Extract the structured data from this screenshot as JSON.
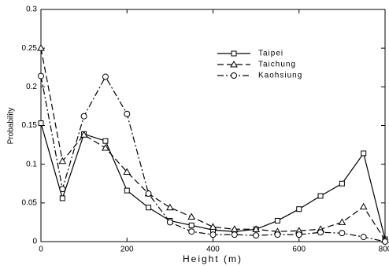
{
  "chart_data": {
    "type": "line",
    "xlabel": "Height (m)",
    "ylabel": "Probability",
    "x": [
      0,
      50,
      100,
      150,
      200,
      250,
      300,
      350,
      400,
      450,
      500,
      550,
      600,
      650,
      700,
      750,
      800
    ],
    "series": [
      {
        "name": "Taipei",
        "color": "#000000",
        "dash": "solid",
        "marker": "square",
        "values": [
          0.153,
          0.056,
          0.139,
          0.13,
          0.066,
          0.044,
          0.027,
          0.021,
          0.015,
          0.013,
          0.016,
          0.027,
          0.042,
          0.059,
          0.075,
          0.114,
          0.003
        ]
      },
      {
        "name": "Taichung",
        "color": "#000000",
        "dash": "dashed",
        "marker": "triangle",
        "values": [
          0.25,
          0.104,
          0.138,
          0.121,
          0.09,
          0.062,
          0.044,
          0.032,
          0.019,
          0.016,
          0.016,
          0.013,
          0.014,
          0.016,
          0.025,
          0.045,
          0.002
        ]
      },
      {
        "name": "Kaohsiung",
        "color": "#000000",
        "dash": "dashdot",
        "marker": "circle",
        "values": [
          0.214,
          0.068,
          0.162,
          0.213,
          0.165,
          0.062,
          0.025,
          0.013,
          0.009,
          0.009,
          0.008,
          0.009,
          0.009,
          0.012,
          0.011,
          0.006,
          0
        ]
      }
    ],
    "xlim": [
      0,
      800
    ],
    "xticks": [
      0,
      200,
      400,
      600,
      800
    ],
    "ylim": [
      0,
      0.3
    ],
    "yticks": [
      0,
      0.05,
      0.1,
      0.15,
      0.2,
      0.25,
      0.3
    ],
    "legend": "upper right",
    "grid": false
  }
}
